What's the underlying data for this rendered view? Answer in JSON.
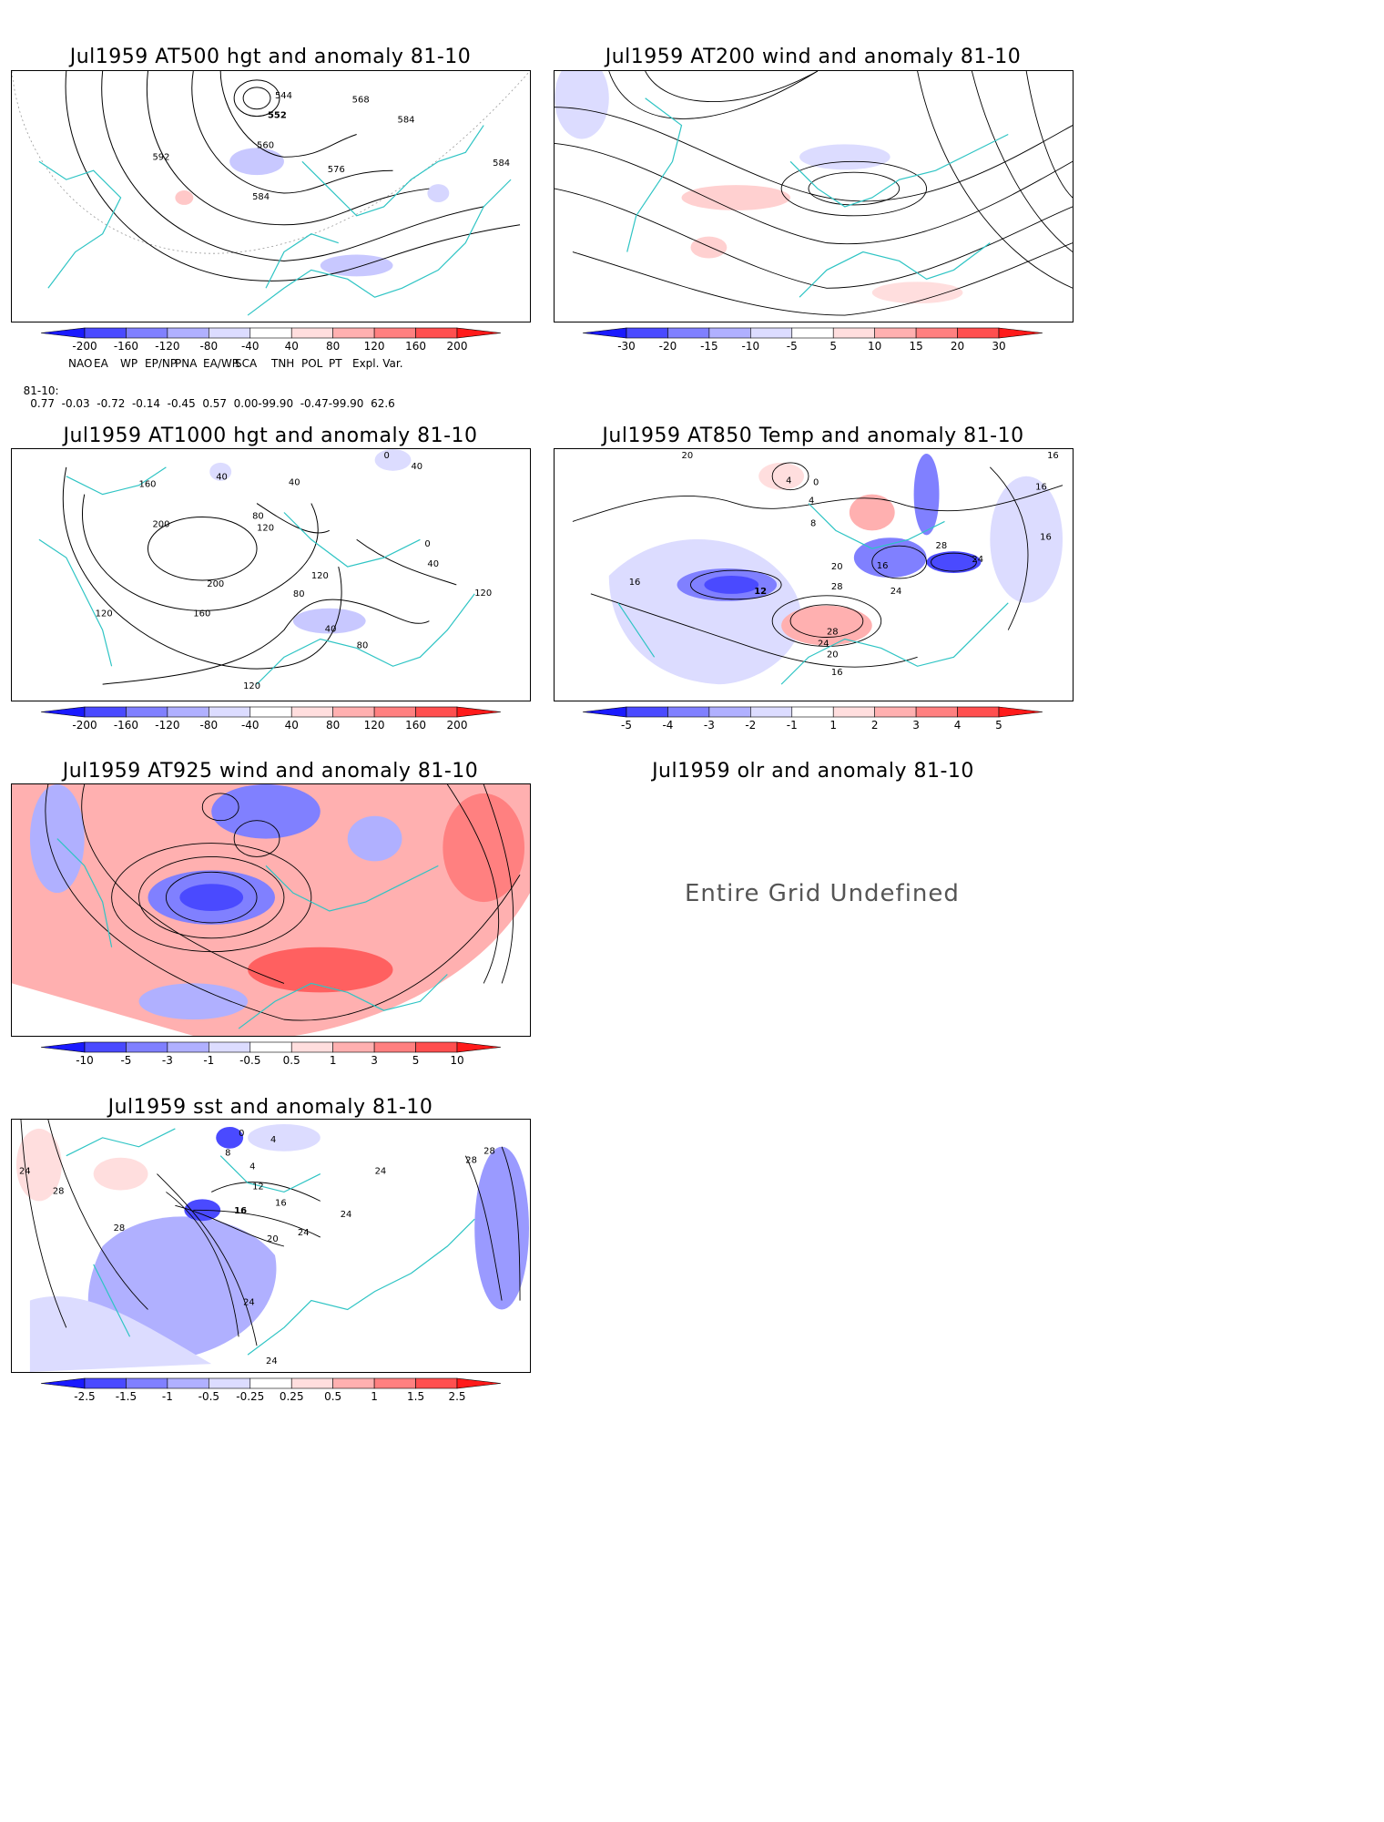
{
  "panels": [
    {
      "id": "p500",
      "title": "Jul1959 AT500 hgt and anomaly 81-10",
      "contour_labels": [
        "544",
        "552",
        "560",
        "568",
        "576",
        "584",
        "584",
        "584",
        "592"
      ],
      "colorbar": [
        "-200",
        "-160",
        "-120",
        "-80",
        "-40",
        "40",
        "80",
        "120",
        "160",
        "200"
      ]
    },
    {
      "id": "p200",
      "title": "Jul1959 AT200 wind and anomaly 81-10",
      "contour_labels": [],
      "colorbar": [
        "-30",
        "-20",
        "-15",
        "-10",
        "-5",
        "5",
        "10",
        "15",
        "20",
        "30"
      ]
    },
    {
      "id": "p1000",
      "title": "Jul1959 AT1000 hgt and anomaly 81-10",
      "contour_labels": [
        "160",
        "200",
        "200",
        "160",
        "120",
        "120",
        "40",
        "40",
        "80",
        "120",
        "0",
        "40",
        "120",
        "80",
        "40",
        "80",
        "120",
        "40",
        "0"
      ],
      "colorbar": [
        "-200",
        "-160",
        "-120",
        "-80",
        "-40",
        "40",
        "80",
        "120",
        "160",
        "200"
      ]
    },
    {
      "id": "p850",
      "title": "Jul1959 AT850 Temp and anomaly 81-10",
      "contour_labels": [
        "20",
        "4",
        "0",
        "4",
        "8",
        "16",
        "12",
        "16",
        "20",
        "28",
        "24",
        "28",
        "24",
        "20",
        "16",
        "16",
        "24",
        "28",
        "16",
        "16"
      ],
      "colorbar": [
        "-5",
        "-4",
        "-3",
        "-2",
        "-1",
        "1",
        "2",
        "3",
        "4",
        "5"
      ]
    },
    {
      "id": "p925",
      "title": "Jul1959 AT925 wind and anomaly 81-10",
      "contour_labels": [],
      "colorbar": [
        "-10",
        "-5",
        "-3",
        "-1",
        "-0.5",
        "0.5",
        "1",
        "3",
        "5",
        "10"
      ]
    },
    {
      "id": "polr",
      "title": "Jul1959 olr and anomaly 81-10",
      "message": "Entire Grid Undefined"
    },
    {
      "id": "psst",
      "title": "Jul1959 sst and anomaly 81-10",
      "contour_labels": [
        "24",
        "28",
        "28",
        "8",
        "4",
        "12",
        "16",
        "16",
        "20",
        "24",
        "24",
        "24",
        "28",
        "28",
        "24",
        "24",
        "0",
        "4"
      ],
      "colorbar": [
        "-2.5",
        "-1.5",
        "-1",
        "-0.5",
        "-0.25",
        "0.25",
        "0.5",
        "1",
        "1.5",
        "2.5"
      ]
    }
  ],
  "indices": {
    "header": [
      "NAO",
      "EA",
      "WP",
      "EP/NP",
      "PNA",
      "EA/WR",
      "SCA",
      "TNH",
      "POL",
      "PT",
      "Expl. Var."
    ],
    "row_label": "81-10:",
    "values": [
      "0.77",
      "-0.03",
      "-0.72",
      "-0.14",
      "-0.45",
      "0.57",
      "0.00-99.90",
      "-0.47-99.90",
      "62.6"
    ]
  },
  "colors": {
    "coast": "#2ec4c4",
    "contour": "#000000",
    "blue_scale": [
      "#1a1aff",
      "#4a4aff",
      "#8080ff",
      "#b0b0ff",
      "#dcdcff"
    ],
    "red_scale": [
      "#ffdede",
      "#ffb0b0",
      "#ff8080",
      "#ff4f4f",
      "#ff1a1a"
    ]
  }
}
